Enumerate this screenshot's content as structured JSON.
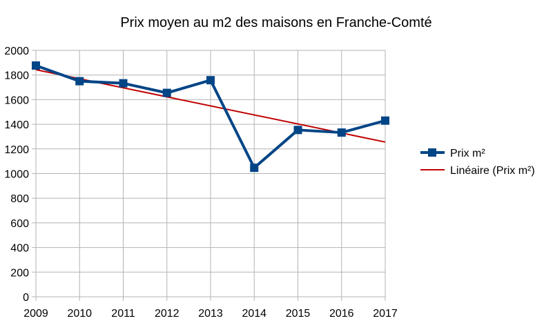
{
  "chart_data": {
    "type": "line",
    "title": "Prix moyen au m2 des maisons en Franche-Comté",
    "xlabel": "",
    "ylabel": "",
    "x": [
      "2009",
      "2010",
      "2011",
      "2012",
      "2013",
      "2014",
      "2015",
      "2016",
      "2017"
    ],
    "ylim": [
      0,
      2000
    ],
    "yticks": [
      0,
      200,
      400,
      600,
      800,
      1000,
      1200,
      1400,
      1600,
      1800,
      2000
    ],
    "grid": true,
    "legend_position": "right",
    "series": [
      {
        "name": "Prix m²",
        "values": [
          1877,
          1750,
          1733,
          1655,
          1758,
          1047,
          1354,
          1333,
          1430
        ],
        "color": "#004586",
        "marker": "square"
      }
    ],
    "trendline": {
      "name": "Linéaire (Prix m²)",
      "type": "linear",
      "start": 1843,
      "end": 1256,
      "color": "#c00000"
    }
  }
}
